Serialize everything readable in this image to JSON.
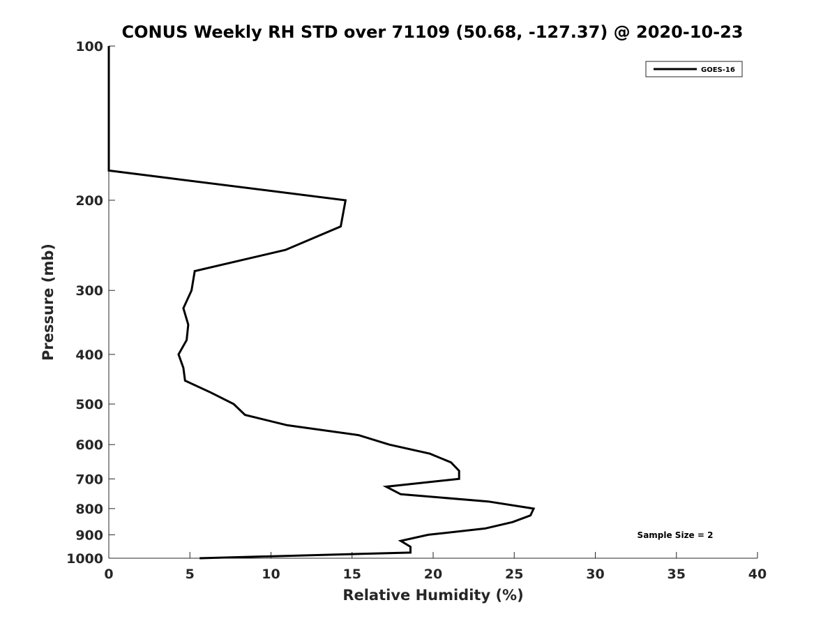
{
  "chart_data": {
    "type": "line",
    "title": "CONUS Weekly RH STD over 71109 (50.68, -127.37) @ 2020-10-23",
    "xlabel": "Relative Humidity (%)",
    "ylabel": "Pressure (mb)",
    "xlim": [
      0,
      40
    ],
    "ylim": [
      1000,
      100
    ],
    "yscale": "log",
    "x_ticks": [
      0,
      5,
      10,
      15,
      20,
      25,
      30,
      35,
      40
    ],
    "x_tick_labels": [
      "0",
      "5",
      "10",
      "15",
      "20",
      "25",
      "30",
      "35",
      "40"
    ],
    "y_ticks": [
      100,
      200,
      300,
      400,
      500,
      600,
      700,
      800,
      900,
      1000
    ],
    "y_tick_labels": [
      "100",
      "200",
      "300",
      "400",
      "500",
      "600",
      "700",
      "800",
      "900",
      "1000"
    ],
    "grid": false,
    "legend_position": "top-right",
    "annotation": "Sample Size = 2",
    "series": [
      {
        "name": "GOES-16",
        "color": "#000000",
        "pressure": [
          100,
          150,
          175,
          200,
          225,
          250,
          275,
          300,
          325,
          350,
          375,
          400,
          425,
          450,
          475,
          500,
          525,
          550,
          575,
          600,
          625,
          650,
          675,
          700,
          725,
          750,
          775,
          800,
          825,
          850,
          875,
          900,
          925,
          950,
          975,
          1000
        ],
        "values": [
          0.0,
          0.0,
          0.0,
          14.6,
          14.3,
          10.9,
          5.3,
          5.1,
          4.6,
          4.9,
          4.8,
          4.3,
          4.6,
          4.7,
          6.3,
          7.7,
          8.4,
          11.0,
          15.4,
          17.3,
          19.8,
          21.1,
          21.6,
          21.6,
          17.1,
          18.0,
          23.4,
          26.2,
          26.0,
          24.9,
          23.2,
          19.7,
          18.0,
          18.6,
          18.6,
          5.6
        ]
      }
    ]
  }
}
